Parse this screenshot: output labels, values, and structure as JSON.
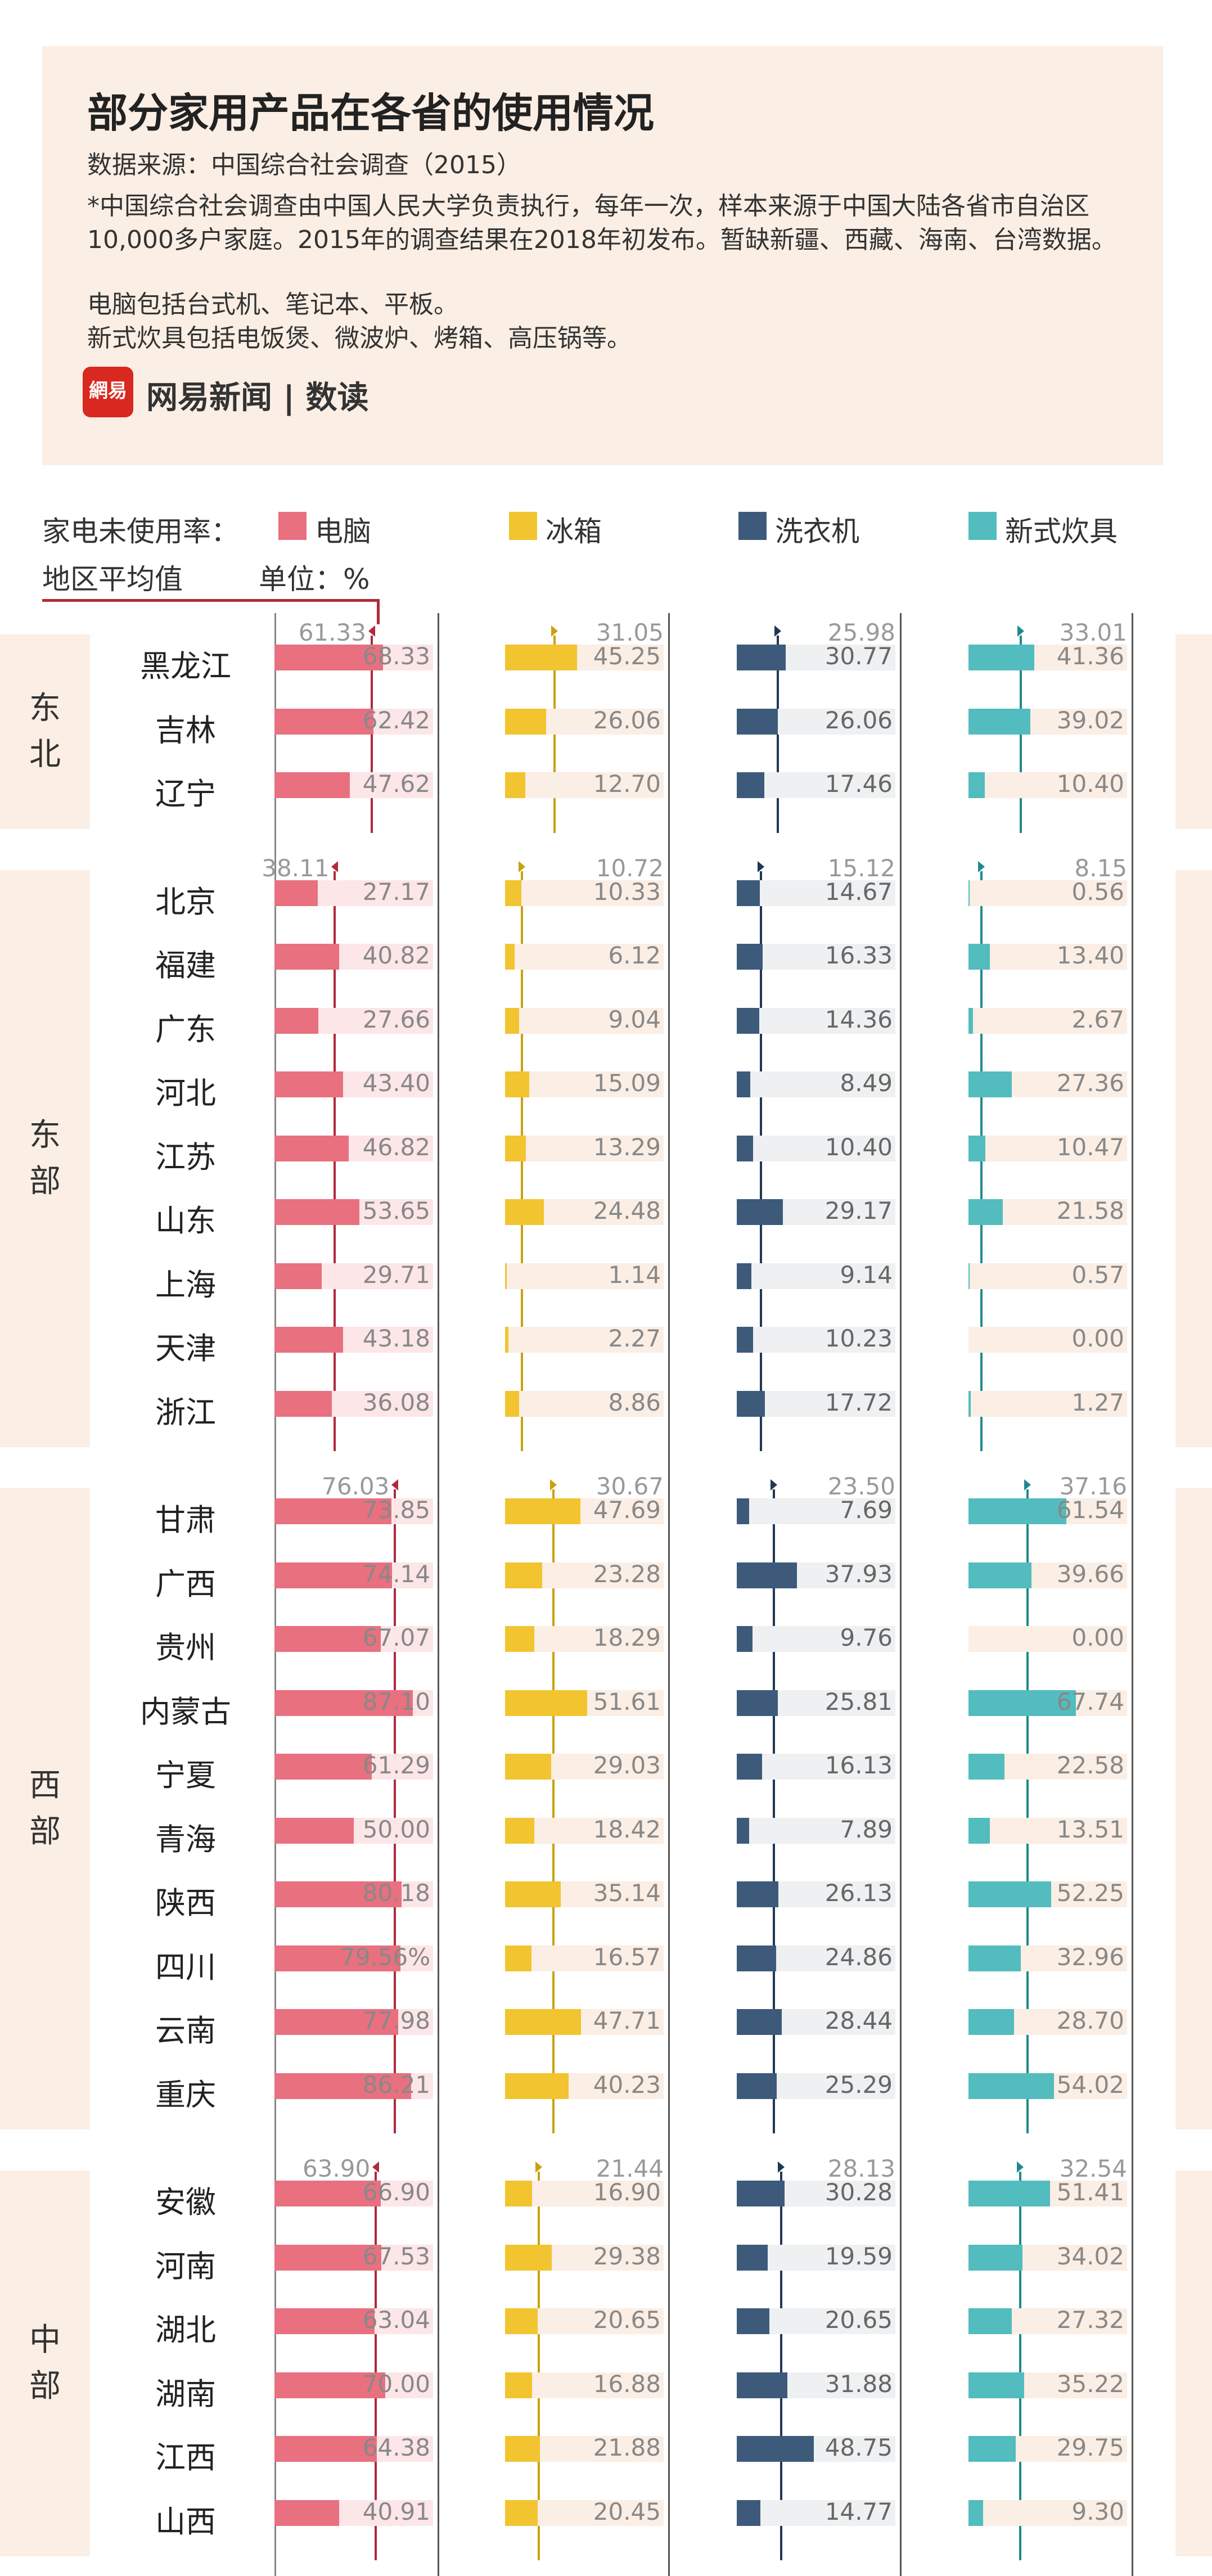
{
  "header": {
    "title": "部分家用产品在各省的使用情况",
    "source": "数据来源：中国综合社会调查（2015）",
    "note": "*中国综合社会调查由中国人民大学负责执行，每年一次，样本来源于中国大陆各省市自治区10,000多户家庭。2015年的调查结果在2018年初发布。暂缺新疆、西藏、海南、台湾数据。",
    "note2": "电脑包括台式机、笔记本、平板。",
    "note3": "新式炊具包括电饭煲、微波炉、烤箱、高压锅等。",
    "logo_text": "網易",
    "brand": "网易新闻 | 数读"
  },
  "legend": {
    "label": "家电未使用率：",
    "avg_label": "地区平均值",
    "unit_label": "单位：%",
    "items": [
      "电脑",
      "冰箱",
      "洗衣机",
      "新式炊具"
    ]
  },
  "colors": {
    "computer": "#e8707f",
    "fridge": "#f1c430",
    "washer": "#3d5a7a",
    "cooker": "#52bcbe",
    "computer_avg": "#b02a3c",
    "fridge_avg": "#c9a10f",
    "washer_avg": "#1f3854",
    "cooker_avg": "#1f8a8c",
    "band": "#fbeee4"
  },
  "chart_data": {
    "type": "bar",
    "title": "部分家用产品在各省的使用情况",
    "unit": "%",
    "series": [
      "电脑",
      "冰箱",
      "洗衣机",
      "新式炊具"
    ],
    "regions": [
      {
        "name": "东北",
        "avg": [
          "61.33",
          "31.05",
          "25.98",
          "33.01"
        ],
        "provinces": [
          {
            "name": "黑龙江",
            "values": [
              "68.33",
              "45.25",
              "30.77",
              "41.36"
            ]
          },
          {
            "name": "吉林",
            "values": [
              "62.42",
              "26.06",
              "26.06",
              "39.02"
            ]
          },
          {
            "name": "辽宁",
            "values": [
              "47.62",
              "12.70",
              "17.46",
              "10.40"
            ]
          }
        ]
      },
      {
        "name": "东部",
        "avg": [
          "38.11",
          "10.72",
          "15.12",
          "8.15"
        ],
        "provinces": [
          {
            "name": "北京",
            "values": [
              "27.17",
              "10.33",
              "14.67",
              "0.56"
            ]
          },
          {
            "name": "福建",
            "values": [
              "40.82",
              "6.12",
              "16.33",
              "13.40"
            ]
          },
          {
            "name": "广东",
            "values": [
              "27.66",
              "9.04",
              "14.36",
              "2.67"
            ]
          },
          {
            "name": "河北",
            "values": [
              "43.40",
              "15.09",
              "8.49",
              "27.36"
            ]
          },
          {
            "name": "江苏",
            "values": [
              "46.82",
              "13.29",
              "10.40",
              "10.47"
            ]
          },
          {
            "name": "山东",
            "values": [
              "53.65",
              "24.48",
              "29.17",
              "21.58"
            ]
          },
          {
            "name": "上海",
            "values": [
              "29.71",
              "1.14",
              "9.14",
              "0.57"
            ]
          },
          {
            "name": "天津",
            "values": [
              "43.18",
              "2.27",
              "10.23",
              "0.00"
            ]
          },
          {
            "name": "浙江",
            "values": [
              "36.08",
              "8.86",
              "17.72",
              "1.27"
            ]
          }
        ]
      },
      {
        "name": "西部",
        "avg": [
          "76.03",
          "30.67",
          "23.50",
          "37.16"
        ],
        "provinces": [
          {
            "name": "甘肃",
            "values": [
              "73.85",
              "47.69",
              "7.69",
              "61.54"
            ]
          },
          {
            "name": "广西",
            "values": [
              "74.14",
              "23.28",
              "37.93",
              "39.66"
            ]
          },
          {
            "name": "贵州",
            "values": [
              "67.07",
              "18.29",
              "9.76",
              "0.00"
            ]
          },
          {
            "name": "内蒙古",
            "values": [
              "87.10",
              "51.61",
              "25.81",
              "67.74"
            ]
          },
          {
            "name": "宁夏",
            "values": [
              "61.29",
              "29.03",
              "16.13",
              "22.58"
            ]
          },
          {
            "name": "青海",
            "values": [
              "50.00",
              "18.42",
              "7.89",
              "13.51"
            ]
          },
          {
            "name": "陕西",
            "values": [
              "80.18",
              "35.14",
              "26.13",
              "52.25"
            ]
          },
          {
            "name": "四川",
            "values": [
              "79.56%",
              "16.57",
              "24.86",
              "32.96"
            ]
          },
          {
            "name": "云南",
            "values": [
              "77.98",
              "47.71",
              "28.44",
              "28.70"
            ]
          },
          {
            "name": "重庆",
            "values": [
              "86.21",
              "40.23",
              "25.29",
              "54.02"
            ]
          }
        ]
      },
      {
        "name": "中部",
        "avg": [
          "63.90",
          "21.44",
          "28.13",
          "32.54"
        ],
        "provinces": [
          {
            "name": "安徽",
            "values": [
              "66.90",
              "16.90",
              "30.28",
              "51.41"
            ]
          },
          {
            "name": "河南",
            "values": [
              "67.53",
              "29.38",
              "19.59",
              "34.02"
            ]
          },
          {
            "name": "湖北",
            "values": [
              "63.04",
              "20.65",
              "20.65",
              "27.32"
            ]
          },
          {
            "name": "湖南",
            "values": [
              "70.00",
              "16.88",
              "31.88",
              "35.22"
            ]
          },
          {
            "name": "江西",
            "values": [
              "64.38",
              "21.88",
              "48.75",
              "29.75"
            ]
          },
          {
            "name": "山西",
            "values": [
              "40.91",
              "20.45",
              "14.77",
              "9.30"
            ]
          }
        ]
      }
    ]
  }
}
